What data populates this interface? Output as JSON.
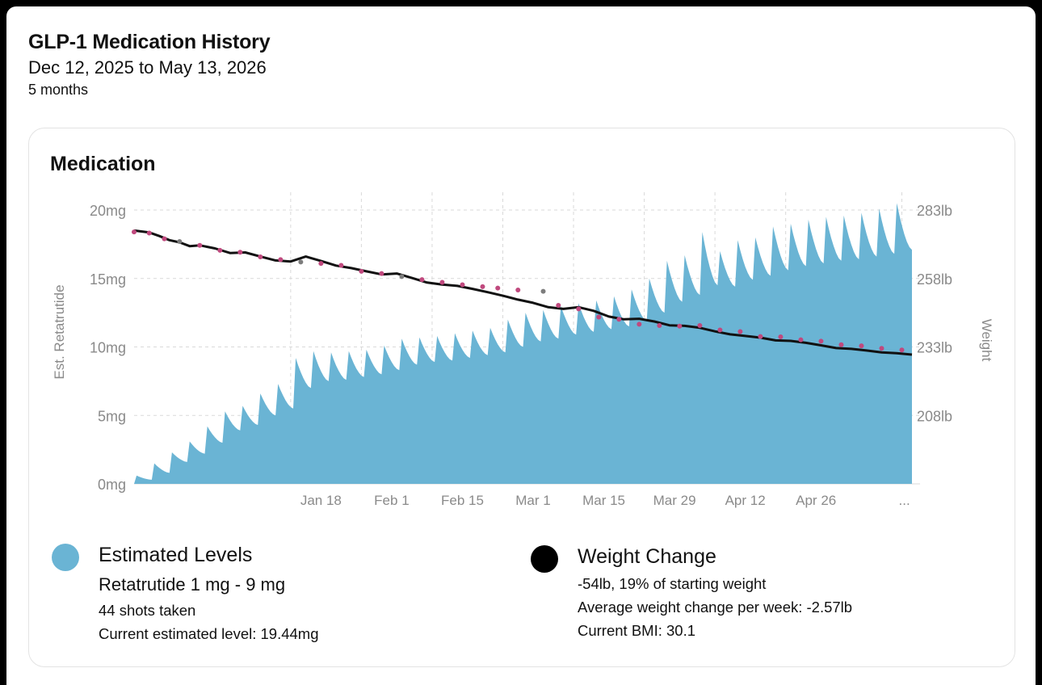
{
  "header": {
    "title": "GLP-1 Medication History",
    "date_range": "Dec 12, 2025 to May 13, 2026",
    "duration": "5 months"
  },
  "card": {
    "title": "Medication"
  },
  "legend": {
    "levels": {
      "title": "Estimated Levels",
      "subtitle": "Retatrutide 1 mg - 9 mg",
      "shots": "44 shots taken",
      "current": "Current estimated level: 19.44mg",
      "color": "#6ab4d4"
    },
    "weight": {
      "title": "Weight Change",
      "change": "-54lb, 19% of starting weight",
      "avg": "Average weight change per week: -2.57lb",
      "bmi": "Current BMI: 30.1",
      "color": "#000000"
    }
  },
  "chart_data": {
    "type": "area+line",
    "ylabel_left": "Est. Retatrutide",
    "ylabel_right": "Weight",
    "left_ticks": [
      "20mg",
      "15mg",
      "10mg",
      "5mg",
      "0mg"
    ],
    "left_tick_values": [
      20,
      15,
      10,
      5,
      0
    ],
    "right_ticks": [
      "283lb",
      "258lb",
      "233lb",
      "208lb"
    ],
    "right_tick_values": [
      283,
      258,
      233,
      208
    ],
    "left_ylim": [
      0,
      20
    ],
    "x_ticks": [
      "Jan 18",
      "Feb 1",
      "Feb 15",
      "Mar 1",
      "Mar 15",
      "Mar 29",
      "Apr 12",
      "Apr 26",
      "..."
    ],
    "x_tick_days": [
      37,
      51,
      65,
      79,
      93,
      107,
      121,
      135,
      152.5
    ],
    "x_domain_days": [
      0,
      154
    ],
    "grid": true,
    "colors": {
      "area": "#6ab4d4",
      "line": "#111111",
      "point": "#c0497e",
      "point_alt": "#7d7d7d"
    },
    "series": [
      {
        "name": "Estimated Levels",
        "type": "area",
        "x_days": [
          0,
          3.5,
          7,
          10.5,
          14,
          17.5,
          21,
          24.5,
          28,
          31.5,
          35,
          38.5,
          42,
          45.5,
          49,
          52.5,
          56,
          59.5,
          63,
          66.5,
          70,
          73.5,
          77,
          80.5,
          84,
          87.5,
          91,
          94.5,
          98,
          101.5,
          105,
          108.5,
          112,
          115.5,
          119,
          122.5,
          126,
          129.5,
          133,
          136.5,
          140,
          143.5,
          147,
          150.5
        ],
        "peaks": [
          0.6,
          1.5,
          2.3,
          3.1,
          4.2,
          5.3,
          5.7,
          6.6,
          7.3,
          9.2,
          9.7,
          9.6,
          9.7,
          9.8,
          10.1,
          10.6,
          10.7,
          10.8,
          11.0,
          11.2,
          11.4,
          12.0,
          12.5,
          12.7,
          13.0,
          13.2,
          13.4,
          13.7,
          14.2,
          15.0,
          16.3,
          16.7,
          18.4,
          17.0,
          17.8,
          18.0,
          18.8,
          19.0,
          19.3,
          19.5,
          19.6,
          19.8,
          20.1,
          20.5
        ],
        "troughs": [
          0.3,
          0.8,
          1.6,
          2.2,
          3.0,
          3.9,
          4.3,
          5.0,
          5.5,
          7.0,
          7.5,
          7.6,
          7.8,
          8.0,
          8.3,
          8.7,
          8.9,
          9.0,
          9.2,
          9.4,
          9.6,
          10.0,
          10.4,
          10.6,
          10.9,
          11.1,
          11.3,
          11.5,
          11.9,
          12.5,
          13.3,
          13.8,
          14.5,
          14.4,
          14.9,
          15.2,
          15.6,
          15.9,
          16.1,
          16.3,
          16.4,
          16.6,
          16.8,
          17.1
        ],
        "current_level": 19.44
      },
      {
        "name": "Weight Change",
        "type": "line",
        "x_days": [
          0,
          3,
          5,
          7,
          9,
          11,
          13,
          16,
          19,
          22,
          25,
          28,
          31,
          34,
          37,
          40,
          43,
          46,
          49,
          52,
          55,
          58,
          61,
          64,
          67,
          70,
          73,
          76,
          79,
          82,
          85,
          88,
          91,
          94,
          97,
          100,
          103,
          106,
          109,
          112,
          115,
          118,
          121,
          124,
          127,
          130,
          133,
          136,
          139,
          142,
          145,
          148,
          151,
          154
        ],
        "weights": [
          275.5,
          274.8,
          273.5,
          272,
          271.2,
          269.8,
          270.1,
          269,
          267.3,
          267.5,
          266,
          264.6,
          264.2,
          266,
          264.4,
          262.7,
          261.8,
          260.6,
          259.5,
          259.8,
          258.2,
          256.5,
          255.8,
          255.3,
          254.2,
          253,
          251.7,
          250.3,
          249.1,
          247.5,
          246.9,
          247.5,
          246.2,
          244.1,
          243.1,
          243.3,
          242.3,
          240.9,
          240.7,
          240,
          238.7,
          237.6,
          237,
          236.4,
          235.4,
          235.2,
          234.5,
          233.6,
          232.6,
          232.3,
          231.7,
          231,
          230.7,
          230.2
        ]
      },
      {
        "name": "Weigh-ins",
        "type": "scatter",
        "x_days": [
          0,
          3,
          6,
          9,
          13,
          17,
          21,
          25,
          29,
          33,
          37,
          41,
          45,
          49,
          53,
          57,
          61,
          65,
          69,
          72,
          76,
          81,
          84,
          88,
          92,
          96,
          100,
          104,
          108,
          112,
          116,
          120,
          124,
          128,
          132,
          136,
          140,
          144,
          148,
          152
        ],
        "weights": [
          275,
          274.6,
          272.5,
          271.5,
          270.1,
          268.3,
          267.6,
          265.9,
          264.9,
          264,
          263.5,
          262.8,
          260.6,
          259.8,
          258.7,
          257.6,
          256.6,
          255.7,
          255,
          254.5,
          253.8,
          253.3,
          248.2,
          246.9,
          243.9,
          243.1,
          241.3,
          240.8,
          240.6,
          240.8,
          239.2,
          238.6,
          236.8,
          236.7,
          235.6,
          235.1,
          233.8,
          233.4,
          232.5,
          231.9
        ]
      }
    ]
  }
}
